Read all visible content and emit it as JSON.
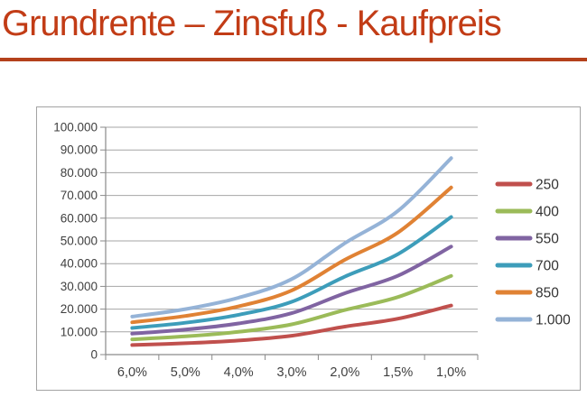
{
  "page": {
    "title": "Grundrente – Zinsfuß - Kaufpreis",
    "title_color": "#C23C16",
    "rule_color": "#B4411B"
  },
  "chart_data": {
    "type": "line",
    "title": "",
    "xlabel": "",
    "ylabel": "",
    "categories": [
      "6,0%",
      "5,0%",
      "4,0%",
      "3,0%",
      "2,0%",
      "1,5%",
      "1,0%"
    ],
    "series": [
      {
        "name": "250",
        "color": "#C0504D",
        "values": [
          4200,
          5000,
          6200,
          8300,
          12300,
          15800,
          21600
        ]
      },
      {
        "name": "400",
        "color": "#9BBB59",
        "values": [
          6700,
          8000,
          10000,
          13300,
          19600,
          25300,
          34600
        ]
      },
      {
        "name": "550",
        "color": "#8064A2",
        "values": [
          9200,
          11000,
          13700,
          18200,
          27000,
          34700,
          47500
        ]
      },
      {
        "name": "700",
        "color": "#3D9DBA",
        "values": [
          11700,
          14000,
          17500,
          23200,
          34300,
          44200,
          60500
        ]
      },
      {
        "name": "850",
        "color": "#E08234",
        "values": [
          14200,
          17000,
          21200,
          28200,
          41700,
          53700,
          73500
        ]
      },
      {
        "name": "1.000",
        "color": "#95B3D7",
        "values": [
          16700,
          20000,
          25000,
          33200,
          49000,
          63200,
          86400
        ]
      }
    ],
    "ylim": [
      0,
      100000
    ],
    "ytick_step": 10000,
    "ytick_labels": [
      "0",
      "10.000",
      "20.000",
      "30.000",
      "40.000",
      "50.000",
      "60.000",
      "70.000",
      "80.000",
      "90.000",
      "100.000"
    ],
    "grid": true,
    "legend_position": "right",
    "line_width": 4,
    "axis_color": "#8A8A8A",
    "grid_color": "#A6A6A6",
    "tick_text_color": "#3F3F3F"
  }
}
